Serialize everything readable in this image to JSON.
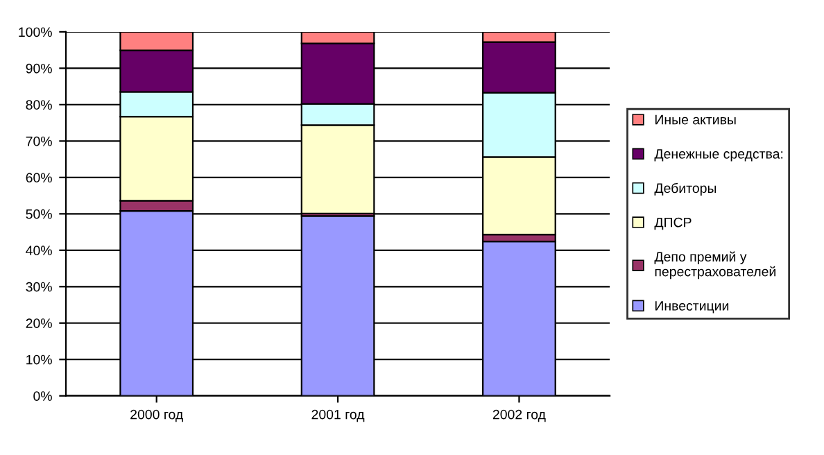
{
  "chart_data": {
    "type": "bar",
    "stacked": true,
    "categories": [
      "2000 год",
      "2001 год",
      "2002 год"
    ],
    "series": [
      {
        "name": "Инвестиции",
        "color": "#9999ff",
        "values": [
          50.8,
          49.4,
          42.4
        ]
      },
      {
        "name": "Депо премий у\nперестрахователей",
        "color": "#993366",
        "values": [
          2.8,
          0.7,
          1.9
        ]
      },
      {
        "name": "ДПСР",
        "color": "#ffffcc",
        "values": [
          23.1,
          24.3,
          21.3
        ]
      },
      {
        "name": "Дебиторы",
        "color": "#ccffff",
        "values": [
          6.8,
          5.8,
          17.7
        ]
      },
      {
        "name": "Денежные средства:",
        "color": "#660066",
        "values": [
          11.4,
          16.6,
          13.9
        ]
      },
      {
        "name": "Иные активы",
        "color": "#ff8080",
        "values": [
          5.1,
          3.2,
          2.8
        ]
      }
    ],
    "ylim": [
      0,
      100
    ],
    "yticks": [
      {
        "value": 0,
        "label": "0%"
      },
      {
        "value": 10,
        "label": "10%"
      },
      {
        "value": 20,
        "label": "20%"
      },
      {
        "value": 30,
        "label": "30%"
      },
      {
        "value": 40,
        "label": "40%"
      },
      {
        "value": 50,
        "label": "50%"
      },
      {
        "value": 60,
        "label": "60%"
      },
      {
        "value": 70,
        "label": "70%"
      },
      {
        "value": 80,
        "label": "80%"
      },
      {
        "value": 90,
        "label": "90%"
      },
      {
        "value": 100,
        "label": "100%"
      }
    ],
    "grid": "y",
    "legend": "right"
  }
}
